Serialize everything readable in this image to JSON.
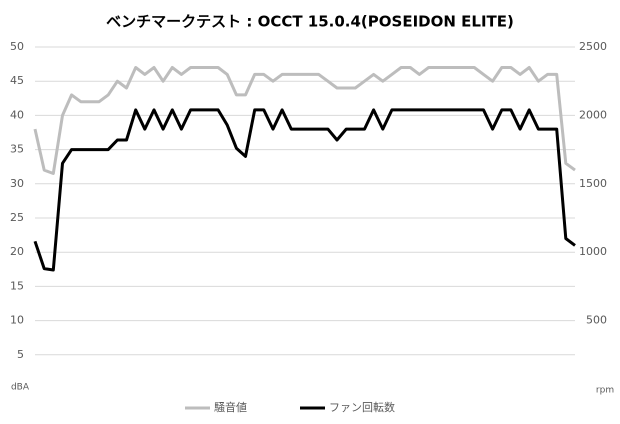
{
  "chart_data": {
    "type": "line",
    "title": "ベンチマークテスト : OCCT 15.0.4(POSEIDON ELITE)",
    "y_label": "dBA",
    "y2_label": "rpm",
    "ylim": [
      0,
      50
    ],
    "yticks": [
      5,
      10,
      15,
      20,
      25,
      30,
      35,
      40,
      45,
      50
    ],
    "y2lim": [
      0,
      2500
    ],
    "y2ticks": [
      500,
      1000,
      1500,
      2000,
      2500
    ],
    "grid": true,
    "legend": "bottom",
    "series": [
      {
        "name": "騒音値",
        "color": "#bdbdbd",
        "values": [
          38,
          32,
          31.5,
          40,
          43,
          42,
          42,
          42,
          43,
          45,
          44,
          47,
          46,
          47,
          45,
          47,
          46,
          47,
          47,
          47,
          47,
          46,
          43,
          43,
          46,
          46,
          45,
          46,
          46,
          46,
          46,
          46,
          45,
          44,
          44,
          44,
          45,
          46,
          45,
          46,
          47,
          47,
          46,
          47,
          47,
          47,
          47,
          47,
          47,
          46,
          45,
          47,
          47,
          46,
          47,
          45,
          46,
          46,
          33,
          32
        ]
      },
      {
        "name": "ファン回転数",
        "color": "#000000",
        "axis": "y2",
        "values": [
          1080,
          880,
          870,
          1650,
          1750,
          1750,
          1750,
          1750,
          1750,
          1820,
          1820,
          2040,
          1900,
          2040,
          1900,
          2040,
          1900,
          2040,
          2040,
          2040,
          2040,
          1930,
          1760,
          1700,
          2040,
          2040,
          1900,
          2040,
          1900,
          1900,
          1900,
          1900,
          1900,
          1820,
          1900,
          1900,
          1900,
          2040,
          1900,
          2040,
          2040,
          2040,
          2040,
          2040,
          2040,
          2040,
          2040,
          2040,
          2040,
          2040,
          1900,
          2040,
          2040,
          1900,
          2040,
          1900,
          1900,
          1900,
          1100,
          1050
        ]
      }
    ]
  }
}
